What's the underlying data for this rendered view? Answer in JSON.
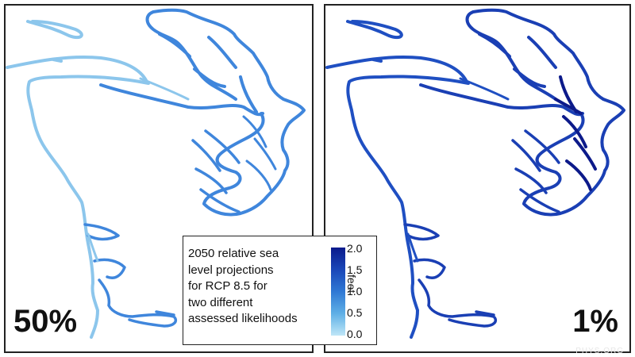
{
  "panels": [
    {
      "label": "50%",
      "colors": {
        "outer": "#8cc6ec",
        "inner": "#3f86dc",
        "deep": "#3f86dc"
      }
    },
    {
      "label": "1%",
      "colors": {
        "outer": "#1f4fc2",
        "inner": "#1a3fb4",
        "deep": "#0c1a8a"
      }
    }
  ],
  "legend": {
    "lines": [
      "2050 relative sea",
      "level projections",
      "for RCP 8.5 for",
      "two different",
      "assessed likelihoods"
    ],
    "ticks": [
      "2.0",
      "1.5",
      "1.0",
      "0.5",
      "0.0"
    ],
    "units": "feet",
    "colorbar": {
      "min": 0.0,
      "max": 2.0,
      "colors": [
        "#bfe6f7",
        "#5fb0e6",
        "#2f78d4",
        "#1a47b8",
        "#0a1a8c"
      ]
    }
  },
  "watermark": "PHYS.ORG"
}
